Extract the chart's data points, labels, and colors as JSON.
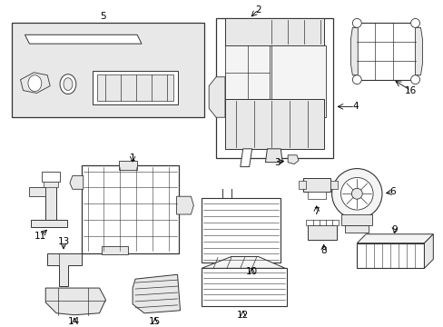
{
  "background_color": "#ffffff",
  "line_color": "#333333",
  "gray_fill": "#e8e8e8",
  "light_fill": "#f4f4f4",
  "figsize": [
    4.89,
    3.6
  ],
  "dpi": 100
}
